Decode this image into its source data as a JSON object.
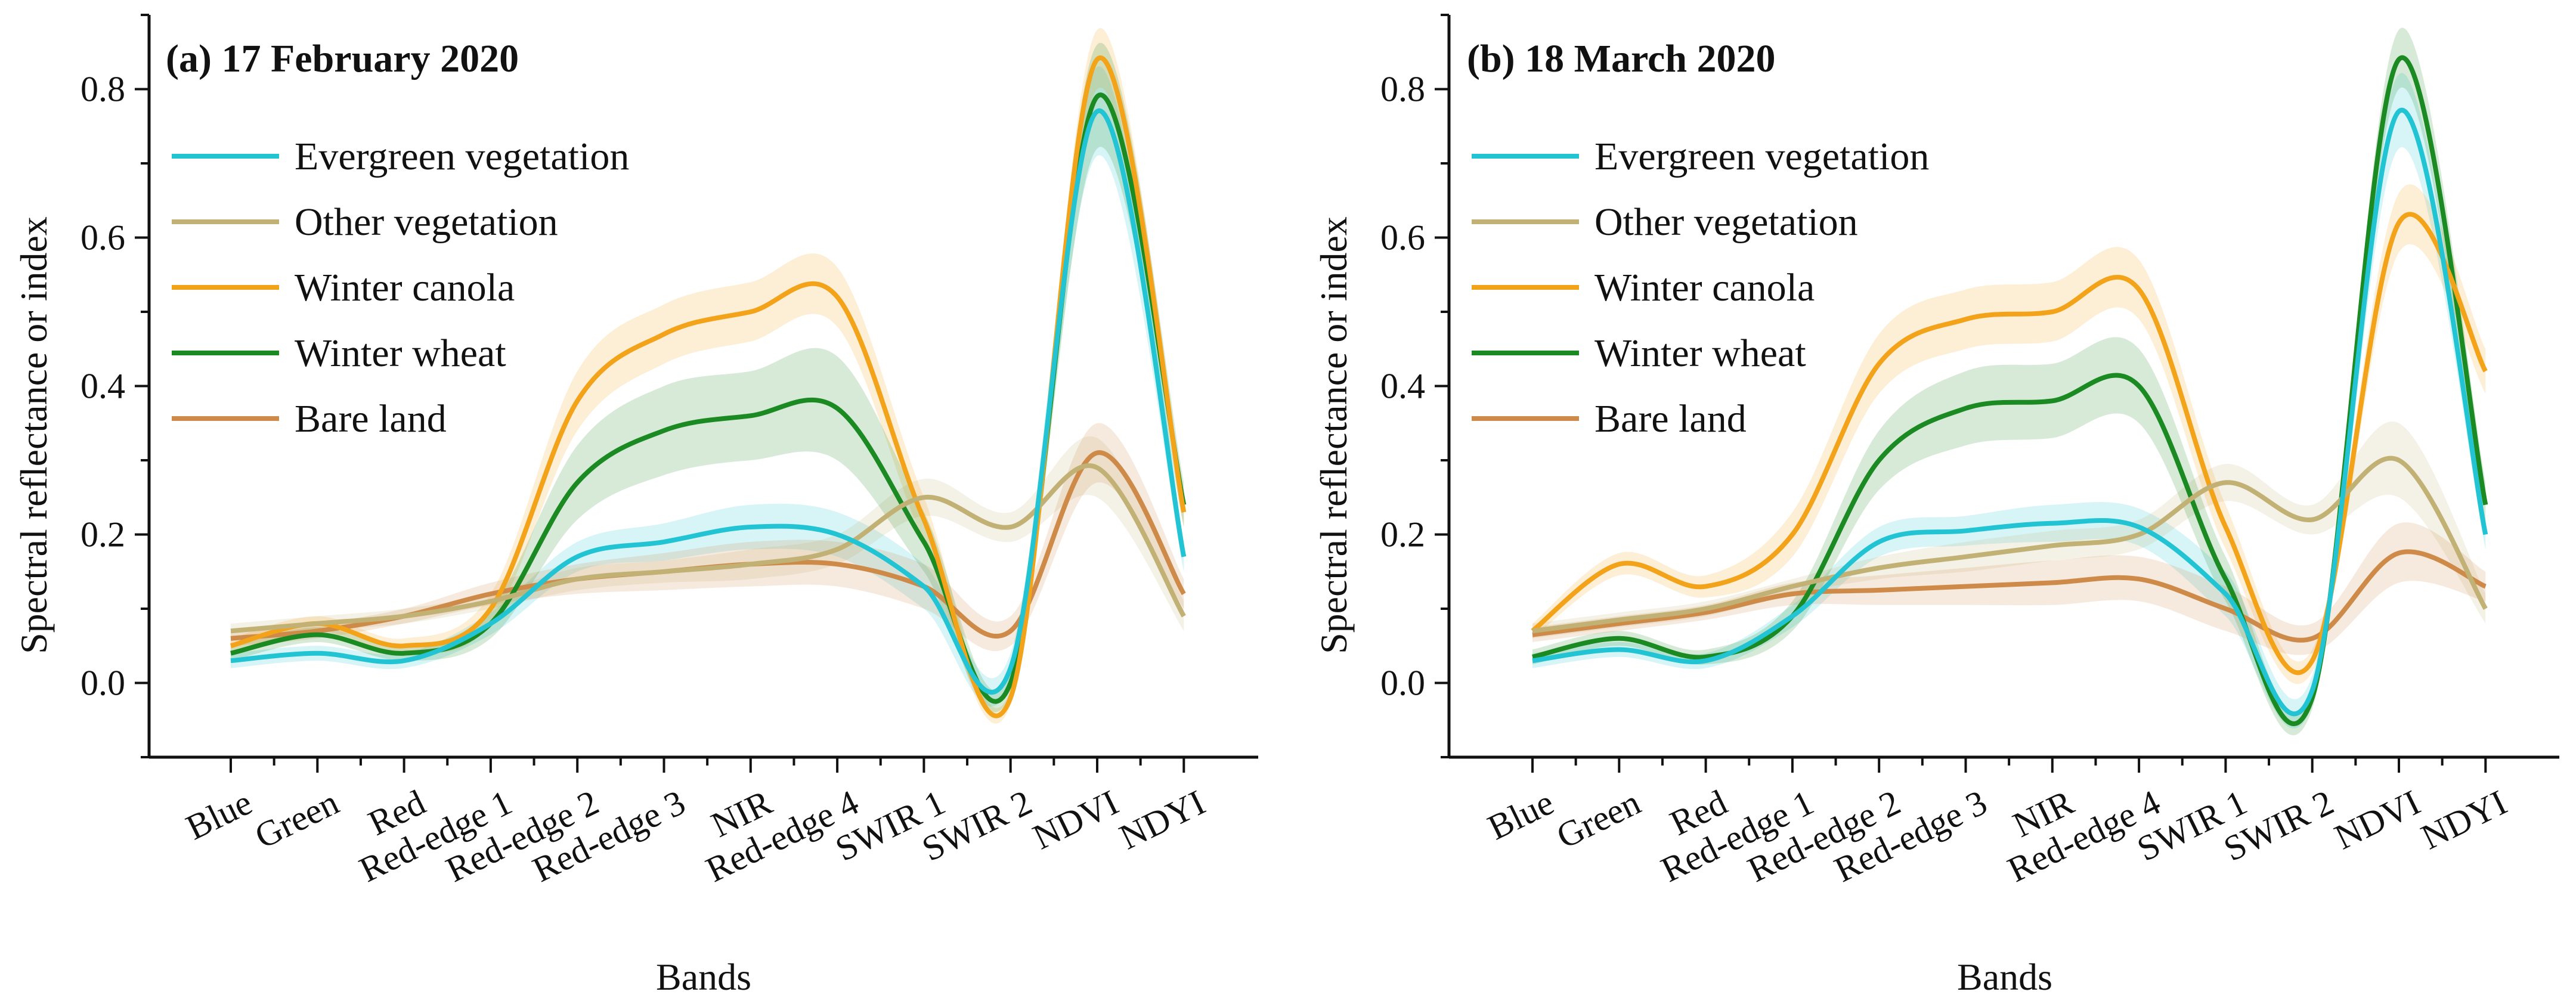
{
  "chart_data": [
    {
      "type": "line",
      "title": "(a) 17 February 2020",
      "xlabel": "Bands",
      "ylabel": "Spectral reflectance or index",
      "ylim": [
        -0.1,
        0.9
      ],
      "yticks": [
        "0.0",
        "0.2",
        "0.4",
        "0.6",
        "0.8"
      ],
      "categories": [
        "Blue",
        "Green",
        "Red",
        "Red-edge 1",
        "Red-edge 2",
        "Red-edge 3",
        "NIR",
        "Red-edge 4",
        "SWIR 1",
        "SWIR 2",
        "NDVI",
        "NDYI"
      ],
      "legend_position": "top-left",
      "series": [
        {
          "name": "Evergreen vegetation",
          "color": "#22c4d4",
          "values": [
            0.03,
            0.04,
            0.03,
            0.08,
            0.17,
            0.19,
            0.21,
            0.2,
            0.13,
            0.02,
            0.77,
            0.17
          ],
          "band": [
            0.01,
            0.01,
            0.01,
            0.015,
            0.02,
            0.025,
            0.03,
            0.03,
            0.03,
            0.02,
            0.06,
            0.02
          ]
        },
        {
          "name": "Other vegetation",
          "color": "#c2b174",
          "values": [
            0.07,
            0.08,
            0.09,
            0.11,
            0.14,
            0.15,
            0.16,
            0.18,
            0.25,
            0.21,
            0.29,
            0.09
          ],
          "band": [
            0.01,
            0.01,
            0.01,
            0.01,
            0.015,
            0.015,
            0.02,
            0.02,
            0.025,
            0.02,
            0.04,
            0.02
          ]
        },
        {
          "name": "Winter canola",
          "color": "#f2a31a",
          "values": [
            0.05,
            0.08,
            0.05,
            0.1,
            0.38,
            0.47,
            0.5,
            0.52,
            0.22,
            -0.02,
            0.84,
            0.23
          ],
          "band": [
            0.01,
            0.01,
            0.01,
            0.02,
            0.04,
            0.04,
            0.04,
            0.04,
            0.03,
            0.01,
            0.04,
            0.02
          ]
        },
        {
          "name": "Winter wheat",
          "color": "#1b8a22",
          "values": [
            0.04,
            0.065,
            0.04,
            0.08,
            0.27,
            0.34,
            0.36,
            0.37,
            0.19,
            0.0,
            0.79,
            0.24
          ],
          "band": [
            0.01,
            0.01,
            0.01,
            0.02,
            0.05,
            0.06,
            0.06,
            0.07,
            0.04,
            0.015,
            0.07,
            0.03
          ]
        },
        {
          "name": "Bare land",
          "color": "#cd8a48",
          "values": [
            0.06,
            0.07,
            0.09,
            0.12,
            0.14,
            0.15,
            0.16,
            0.16,
            0.13,
            0.07,
            0.31,
            0.12
          ],
          "band": [
            0.01,
            0.01,
            0.01,
            0.015,
            0.02,
            0.025,
            0.03,
            0.03,
            0.03,
            0.02,
            0.04,
            0.02
          ]
        }
      ]
    },
    {
      "type": "line",
      "title": "(b) 18 March 2020",
      "xlabel": "Bands",
      "ylabel": "Spectral reflectance or index",
      "ylim": [
        -0.1,
        0.9
      ],
      "yticks": [
        "0.0",
        "0.2",
        "0.4",
        "0.6",
        "0.8"
      ],
      "categories": [
        "Blue",
        "Green",
        "Red",
        "Red-edge 1",
        "Red-edge 2",
        "Red-edge 3",
        "NIR",
        "Red-edge 4",
        "SWIR 1",
        "SWIR 2",
        "NDVI",
        "NDYI"
      ],
      "legend_position": "top-left",
      "series": [
        {
          "name": "Evergreen vegetation",
          "color": "#22c4d4",
          "values": [
            0.03,
            0.045,
            0.03,
            0.09,
            0.19,
            0.205,
            0.215,
            0.21,
            0.12,
            -0.01,
            0.77,
            0.2
          ],
          "band": [
            0.01,
            0.01,
            0.01,
            0.015,
            0.02,
            0.02,
            0.025,
            0.025,
            0.03,
            0.02,
            0.05,
            0.02
          ]
        },
        {
          "name": "Other vegetation",
          "color": "#c2b174",
          "values": [
            0.07,
            0.085,
            0.1,
            0.13,
            0.155,
            0.17,
            0.185,
            0.2,
            0.27,
            0.22,
            0.3,
            0.1
          ],
          "band": [
            0.01,
            0.01,
            0.01,
            0.01,
            0.015,
            0.02,
            0.02,
            0.02,
            0.025,
            0.02,
            0.05,
            0.02
          ]
        },
        {
          "name": "Winter canola",
          "color": "#f2a31a",
          "values": [
            0.07,
            0.16,
            0.13,
            0.2,
            0.43,
            0.49,
            0.5,
            0.53,
            0.21,
            0.03,
            0.62,
            0.42
          ],
          "band": [
            0.01,
            0.015,
            0.015,
            0.03,
            0.04,
            0.04,
            0.04,
            0.04,
            0.03,
            0.015,
            0.04,
            0.03
          ]
        },
        {
          "name": "Winter wheat",
          "color": "#1b8a22",
          "values": [
            0.035,
            0.06,
            0.035,
            0.09,
            0.3,
            0.37,
            0.38,
            0.4,
            0.14,
            -0.02,
            0.84,
            0.24
          ],
          "band": [
            0.01,
            0.01,
            0.01,
            0.02,
            0.04,
            0.05,
            0.05,
            0.05,
            0.03,
            0.015,
            0.04,
            0.03
          ]
        },
        {
          "name": "Bare land",
          "color": "#cd8a48",
          "values": [
            0.065,
            0.08,
            0.095,
            0.12,
            0.125,
            0.13,
            0.135,
            0.14,
            0.1,
            0.06,
            0.175,
            0.13
          ],
          "band": [
            0.01,
            0.01,
            0.01,
            0.015,
            0.02,
            0.025,
            0.03,
            0.03,
            0.03,
            0.02,
            0.04,
            0.02
          ]
        }
      ]
    }
  ]
}
